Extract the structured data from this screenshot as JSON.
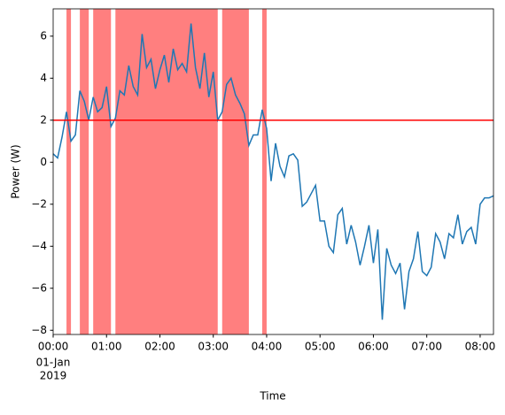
{
  "chart_data": {
    "type": "line",
    "xlabel": "Time",
    "ylabel": "Power (W)",
    "x": [
      0,
      5,
      10,
      15,
      20,
      25,
      30,
      35,
      40,
      45,
      50,
      55,
      60,
      65,
      70,
      75,
      80,
      85,
      90,
      95,
      100,
      105,
      110,
      115,
      120,
      125,
      130,
      135,
      140,
      145,
      150,
      155,
      160,
      165,
      170,
      175,
      180,
      185,
      190,
      195,
      200,
      205,
      210,
      215,
      220,
      225,
      230,
      235,
      240,
      245,
      250,
      255,
      260,
      265,
      270,
      275,
      280,
      285,
      290,
      295,
      300,
      305,
      310,
      315,
      320,
      325,
      330,
      335,
      340,
      345,
      350,
      355,
      360,
      365,
      370,
      375,
      380,
      385,
      390,
      395,
      400,
      405,
      410,
      415,
      420,
      425,
      430,
      435,
      440,
      445,
      450,
      455,
      460,
      465,
      470,
      475,
      480,
      485,
      490,
      495
    ],
    "series": [
      {
        "color": "#1f77b4",
        "values": [
          0.4,
          0.2,
          1.2,
          2.4,
          1.0,
          1.3,
          3.4,
          2.9,
          2.0,
          3.1,
          2.4,
          2.6,
          3.6,
          1.7,
          2.1,
          3.4,
          3.2,
          4.6,
          3.6,
          3.2,
          6.1,
          4.5,
          4.9,
          3.5,
          4.4,
          5.1,
          3.8,
          5.4,
          4.4,
          4.7,
          4.3,
          6.6,
          4.5,
          3.5,
          5.2,
          3.1,
          4.3,
          2.0,
          2.4,
          3.7,
          4.0,
          3.2,
          2.8,
          2.3,
          0.8,
          1.3,
          1.3,
          2.5,
          1.6,
          -0.9,
          0.9,
          -0.2,
          -0.7,
          0.3,
          0.4,
          0.1,
          -2.1,
          -1.9,
          -1.5,
          -1.1,
          -2.8,
          -2.8,
          -4.0,
          -4.3,
          -2.5,
          -2.2,
          -3.9,
          -3.0,
          -3.8,
          -4.9,
          -4.0,
          -3.0,
          -4.8,
          -3.2,
          -7.5,
          -4.1,
          -4.9,
          -5.3,
          -4.8,
          -7.0,
          -5.2,
          -4.6,
          -3.3,
          -5.2,
          -5.4,
          -5.0,
          -3.4,
          -3.8,
          -4.6,
          -3.4,
          -3.6,
          -2.5,
          -3.9,
          -3.3,
          -3.1,
          -3.9,
          -2.0,
          -1.7,
          -1.7,
          -1.6
        ]
      }
    ],
    "threshold": {
      "value": 2,
      "color": "#ff0000"
    },
    "spans": {
      "color": "#ff0000",
      "ranges": [
        [
          15,
          20
        ],
        [
          30,
          40
        ],
        [
          45,
          65
        ],
        [
          70,
          185
        ],
        [
          190,
          220
        ],
        [
          235,
          240
        ]
      ]
    },
    "xlim": [
      0,
      495
    ],
    "ylim": [
      -8.2,
      7.3
    ],
    "xticks": [
      {
        "value": 0,
        "label": "00:00"
      },
      {
        "value": 60,
        "label": "01:00"
      },
      {
        "value": 120,
        "label": "02:00"
      },
      {
        "value": 180,
        "label": "03:00"
      },
      {
        "value": 240,
        "label": "04:00"
      },
      {
        "value": 300,
        "label": "05:00"
      },
      {
        "value": 360,
        "label": "06:00"
      },
      {
        "value": 420,
        "label": "07:00"
      },
      {
        "value": 480,
        "label": "08:00"
      }
    ],
    "date_label": [
      "01-Jan",
      "2019"
    ],
    "yticks": [
      {
        "value": -8,
        "label": "−8"
      },
      {
        "value": -6,
        "label": "−6"
      },
      {
        "value": -4,
        "label": "−4"
      },
      {
        "value": -2,
        "label": "−2"
      },
      0,
      2,
      4,
      6
    ]
  }
}
